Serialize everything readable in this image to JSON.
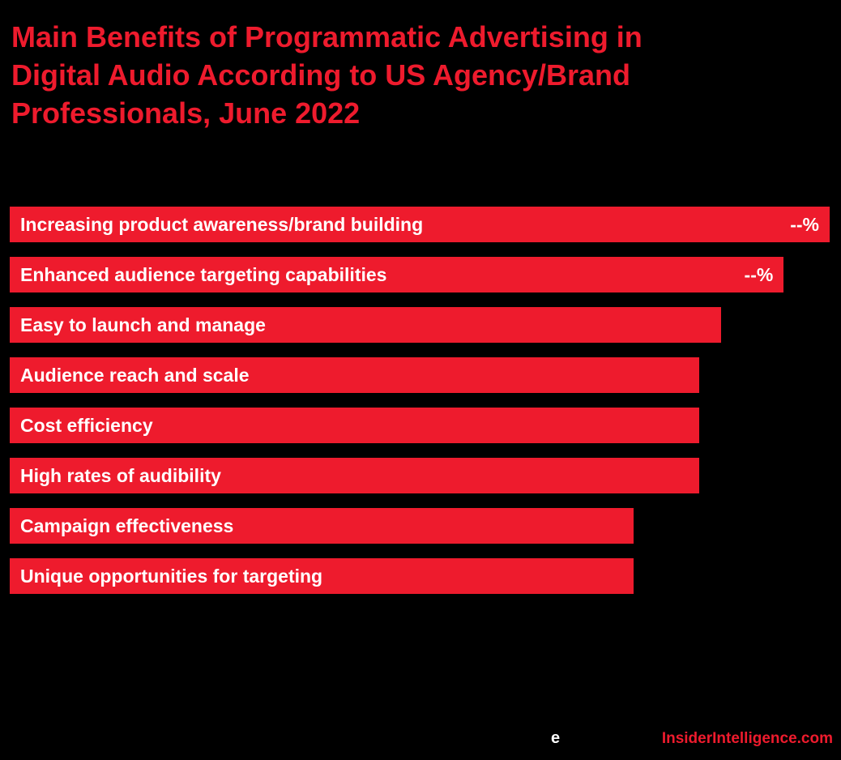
{
  "page": {
    "background": "#000000"
  },
  "title": {
    "full": "Main Benefits of Programmatic Advertising in Digital Audio According to US Agency/Brand Professionals, June 2022",
    "lines": [
      "Main Benefits of Programmatic Advertising in",
      "Digital Audio According to US Agency/Brand",
      "Professionals, June 2022"
    ],
    "color": "#ee1b2d"
  },
  "footer": {
    "emarketer_e": "e",
    "site_text": "InsiderIntelligence.com"
  },
  "chart_data": {
    "type": "bar",
    "orientation": "horizontal",
    "title": "Main Benefits of Programmatic Advertising in Digital Audio According to US Agency/Brand Professionals, June 2022",
    "categories": [
      "Increasing product awareness/brand building",
      "Enhanced audience targeting capabilities",
      "Easy to launch and manage",
      "Audience reach and scale",
      "Cost efficiency",
      "High rates of audibility",
      "Campaign effectiveness",
      "Unique opportunities for targeting"
    ],
    "value_labels": [
      "--%",
      "--%",
      "",
      "",
      "",
      "",
      "",
      ""
    ],
    "relative_widths_pct": [
      100,
      94.4,
      86.8,
      84.1,
      84.1,
      84.1,
      76.1,
      76.1
    ],
    "bar_color": "#ee1b2d",
    "bar_text_color": "#ffffff",
    "background": "#000000",
    "legend": false,
    "axes": "none",
    "labels_position": "inside-bars-left"
  }
}
